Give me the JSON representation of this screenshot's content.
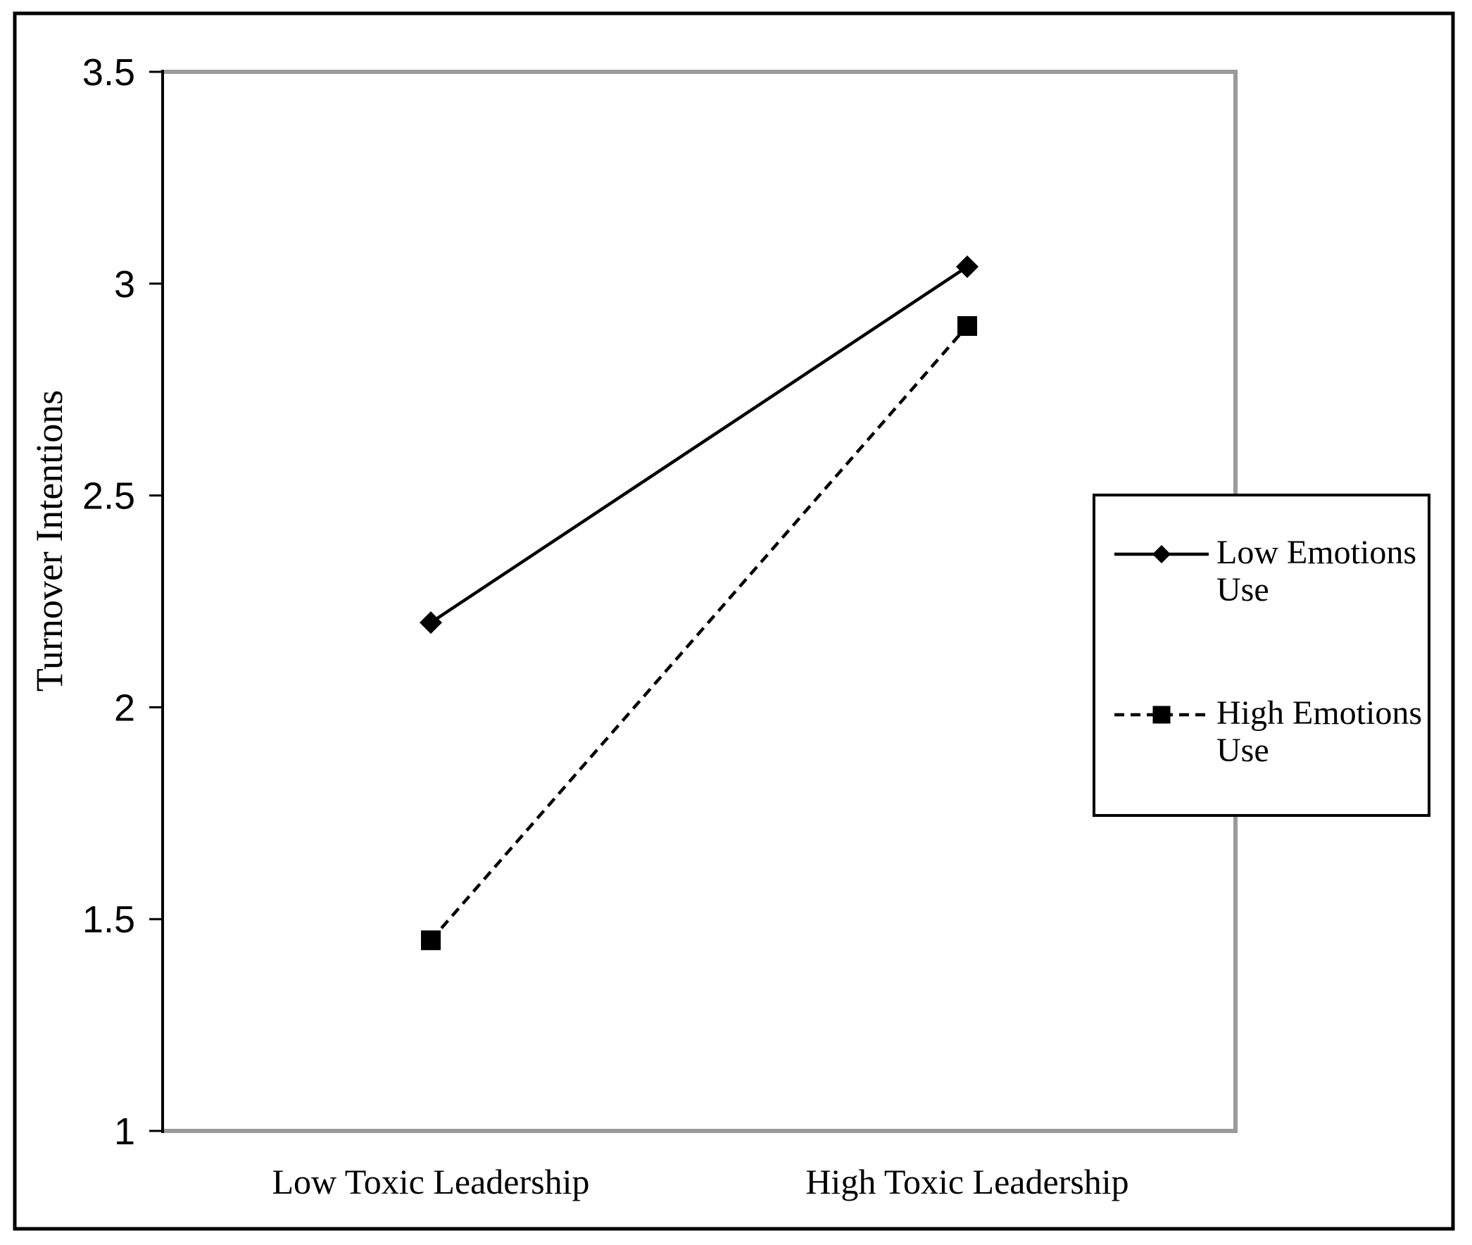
{
  "chart_data": {
    "type": "line",
    "title": "",
    "categories": [
      "Low Toxic Leadership",
      "High Toxic Leadership"
    ],
    "series": [
      {
        "name": "Low Emotions Use",
        "values": [
          2.2,
          3.04
        ],
        "line_style": "solid",
        "marker": "diamond",
        "color": "#000000"
      },
      {
        "name": "High Emotions Use",
        "values": [
          1.45,
          2.9
        ],
        "line_style": "dashed",
        "marker": "square",
        "color": "#000000"
      }
    ],
    "xlabel": "",
    "ylabel": "Turnover Intentions",
    "ylim": [
      1,
      3.5
    ],
    "yticks": [
      1,
      1.5,
      2,
      2.5,
      3,
      3.5
    ],
    "ytick_labels": [
      "1",
      "1.5",
      "2",
      "2.5",
      "3",
      "3.5"
    ],
    "grid": false,
    "legend_position": "right-inside",
    "colors": {
      "line": "#000000",
      "plot_border": "#9a9a9a",
      "outer_border": "#000000",
      "background": "#ffffff"
    }
  }
}
